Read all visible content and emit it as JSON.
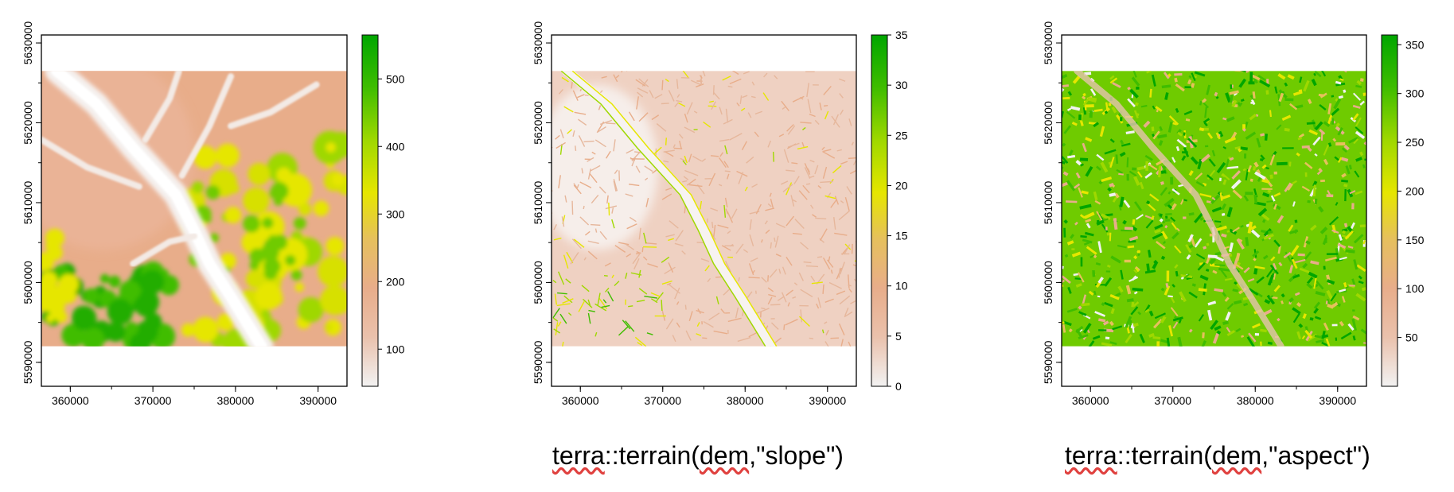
{
  "chart_data": [
    {
      "type": "heatmap",
      "name": "dem",
      "title": "",
      "x_ticks": [
        360000,
        370000,
        380000,
        390000
      ],
      "y_ticks": [
        5590000,
        5600000,
        5610000,
        5620000,
        5630000
      ],
      "xlim": [
        356500,
        393500
      ],
      "ylim": [
        5587000,
        5631000
      ],
      "extent_x": [
        356500,
        393500
      ],
      "extent_y": [
        5592000,
        5626500
      ],
      "legend_range": [
        45,
        565
      ],
      "legend_ticks": [
        100,
        200,
        300,
        400,
        500
      ],
      "palette": [
        "#f2f2f2",
        "#eac1ac",
        "#e8ad8a",
        "#e6c05c",
        "#e6e600",
        "#9fd800",
        "#3fbd00",
        "#00a600"
      ],
      "summary": "Elevation: low pale valley running from upper-left to lower-center, higher green/yellow terrain in the east and a dark green high area in the south-west."
    },
    {
      "type": "heatmap",
      "name": "slope",
      "title": "",
      "x_ticks": [
        360000,
        370000,
        380000,
        390000
      ],
      "y_ticks": [
        5590000,
        5600000,
        5610000,
        5620000,
        5630000
      ],
      "xlim": [
        356500,
        393500
      ],
      "ylim": [
        5587000,
        5631000
      ],
      "extent_x": [
        356500,
        393500
      ],
      "extent_y": [
        5592000,
        5626500
      ],
      "legend_range": [
        0,
        35
      ],
      "legend_ticks": [
        0,
        5,
        10,
        15,
        20,
        25,
        30,
        35
      ],
      "palette": [
        "#f2f2f2",
        "#eac1ac",
        "#e8ad8a",
        "#e6c05c",
        "#e6e600",
        "#9fd800",
        "#3fbd00",
        "#00a600"
      ],
      "summary": "Slope mostly 0-10 degrees (pink), steeper green/yellow bands along valley sides and the south-west."
    },
    {
      "type": "heatmap",
      "name": "aspect",
      "title": "",
      "x_ticks": [
        360000,
        370000,
        380000,
        390000
      ],
      "y_ticks": [
        5590000,
        5600000,
        5610000,
        5620000,
        5630000
      ],
      "xlim": [
        356500,
        393500
      ],
      "ylim": [
        5587000,
        5631000
      ],
      "extent_x": [
        356500,
        393500
      ],
      "extent_y": [
        5592000,
        5626500
      ],
      "legend_range": [
        0,
        360
      ],
      "legend_ticks": [
        50,
        100,
        150,
        200,
        250,
        300,
        350
      ],
      "palette": [
        "#f2f2f2",
        "#eac1ac",
        "#e8ad8a",
        "#e6c05c",
        "#e6e600",
        "#9fd800",
        "#3fbd00",
        "#00a600"
      ],
      "summary": "Aspect: noisy mix of all directions, green (west/north-west facing) predominant."
    }
  ],
  "captions": {
    "slope_pre": "terra",
    "slope_mid1": "::terrain(",
    "slope_dem": "dem",
    "slope_post": ",\"slope\")",
    "aspect_pre": "terra",
    "aspect_mid1": "::terrain(",
    "aspect_dem": "dem",
    "aspect_post": ",\"aspect\")"
  }
}
